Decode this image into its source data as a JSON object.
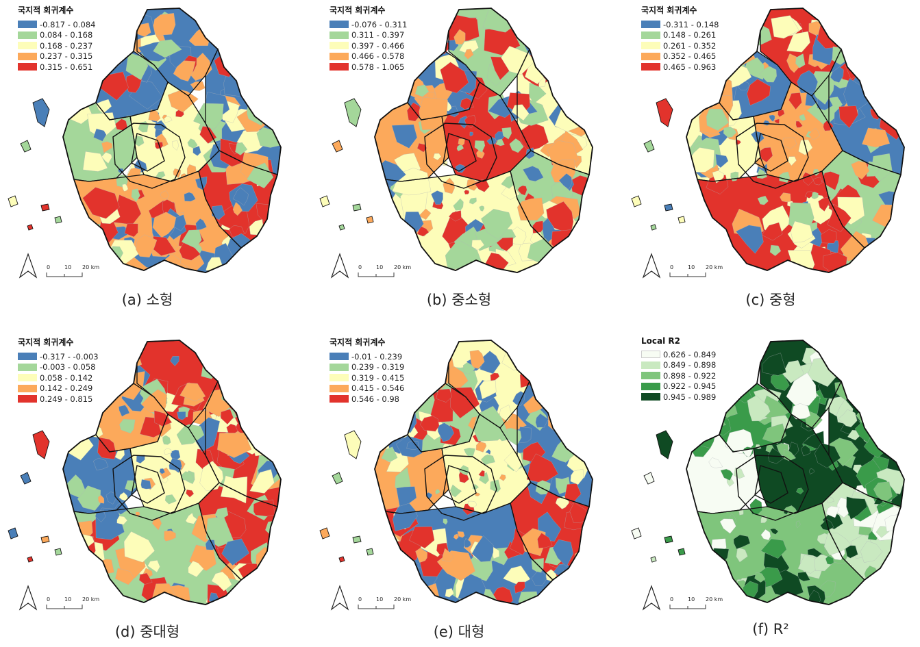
{
  "panels": [
    {
      "id": "a",
      "caption": "(a) 소형",
      "legend": {
        "title": "국지적 회귀계수",
        "classes": [
          {
            "label": "-0.817 - 0.084",
            "color": "#4a7fb8"
          },
          {
            "label": "0.084 - 0.168",
            "color": "#a4d79a"
          },
          {
            "label": "0.168 - 0.237",
            "color": "#fdfdb9"
          },
          {
            "label": "0.237 - 0.315",
            "color": "#fca95b"
          },
          {
            "label": "0.315 - 0.651",
            "color": "#e2332c"
          }
        ]
      },
      "scale": {
        "ticks": [
          "0",
          "10",
          "20 km"
        ]
      },
      "dominant": [
        0,
        0,
        0,
        1,
        2,
        4,
        3
      ]
    },
    {
      "id": "b",
      "caption": "(b) 중소형",
      "legend": {
        "title": "국지적 회귀계수",
        "classes": [
          {
            "label": "-0.076 - 0.311",
            "color": "#4a7fb8"
          },
          {
            "label": "0.311 - 0.397",
            "color": "#a4d79a"
          },
          {
            "label": "0.397 - 0.466",
            "color": "#fdfdb9"
          },
          {
            "label": "0.466 - 0.578",
            "color": "#fca95b"
          },
          {
            "label": "0.578 - 1.065",
            "color": "#e2332c"
          }
        ]
      },
      "scale": {
        "ticks": [
          "0",
          "10",
          "20 km"
        ]
      },
      "dominant": [
        1,
        2,
        0,
        3,
        4,
        1,
        2
      ]
    },
    {
      "id": "c",
      "caption": "(c) 중형",
      "legend": {
        "title": "국지적 회귀계수",
        "classes": [
          {
            "label": "-0.311 - 0.148",
            "color": "#4a7fb8"
          },
          {
            "label": "0.148 - 0.261",
            "color": "#a4d79a"
          },
          {
            "label": "0.261 - 0.352",
            "color": "#fdfdb9"
          },
          {
            "label": "0.352 - 0.465",
            "color": "#fca95b"
          },
          {
            "label": "0.465 - 0.963",
            "color": "#e2332c"
          }
        ]
      },
      "scale": {
        "ticks": [
          "0",
          "10",
          "20 km"
        ]
      },
      "dominant": [
        4,
        0,
        0,
        2,
        3,
        1,
        4
      ]
    },
    {
      "id": "d",
      "caption": "(d) 중대형",
      "legend": {
        "title": "국지적 회귀계수",
        "classes": [
          {
            "label": "-0.317 - -0.003",
            "color": "#4a7fb8"
          },
          {
            "label": "-0.003 - 0.058",
            "color": "#a4d79a"
          },
          {
            "label": "0.058 - 0.142",
            "color": "#fdfdb9"
          },
          {
            "label": "0.142 - 0.249",
            "color": "#fca95b"
          },
          {
            "label": "0.249 - 0.815",
            "color": "#e2332c"
          }
        ]
      },
      "scale": {
        "ticks": [
          "0",
          "10",
          "20 km"
        ]
      },
      "dominant": [
        4,
        4,
        3,
        0,
        2,
        4,
        1
      ]
    },
    {
      "id": "e",
      "caption": "(e) 대형",
      "legend": {
        "title": "국지적 회귀계수",
        "classes": [
          {
            "label": "-0.01 - 0.239",
            "color": "#4a7fb8"
          },
          {
            "label": "0.239 - 0.319",
            "color": "#a4d79a"
          },
          {
            "label": "0.319 - 0.415",
            "color": "#fdfdb9"
          },
          {
            "label": "0.415 - 0.546",
            "color": "#fca95b"
          },
          {
            "label": "0.546 - 0.98",
            "color": "#e2332c"
          }
        ]
      },
      "scale": {
        "ticks": [
          "0",
          "10",
          "20 km"
        ]
      },
      "dominant": [
        2,
        0,
        1,
        3,
        2,
        4,
        0
      ]
    },
    {
      "id": "f",
      "caption": "(f) R²",
      "legend": {
        "title": "Local R2",
        "classes": [
          {
            "label": "0.626 - 0.849",
            "color": "#f7fcf3"
          },
          {
            "label": "0.849 - 0.898",
            "color": "#c9e9c0"
          },
          {
            "label": "0.898 - 0.922",
            "color": "#7fc57c"
          },
          {
            "label": "0.922 - 0.945",
            "color": "#3a9b4a"
          },
          {
            "label": "0.945 - 0.989",
            "color": "#0f4a23"
          }
        ]
      },
      "scale": {
        "ticks": [
          "0",
          "10",
          "20 km"
        ]
      },
      "dominant": [
        4,
        4,
        3,
        0,
        4,
        1,
        2
      ]
    }
  ]
}
